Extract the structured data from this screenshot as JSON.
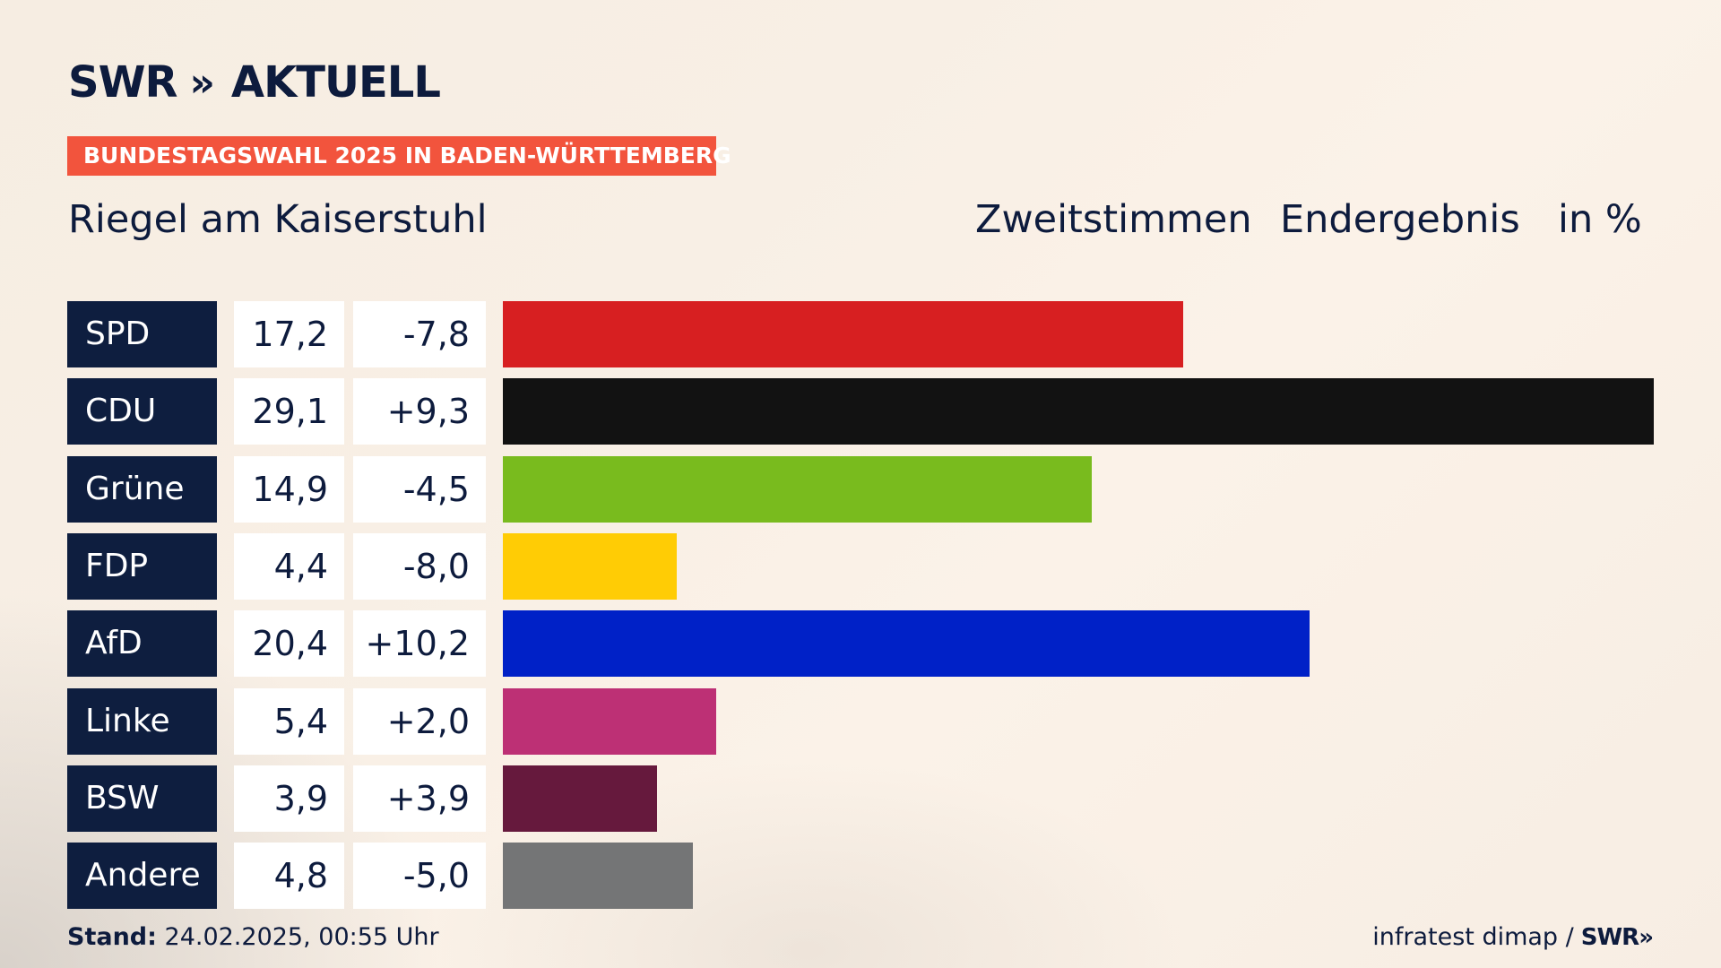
{
  "header": {
    "logo_left": "SWR",
    "logo_chevrons": "»",
    "logo_right": "AKTUELL",
    "banner": "BUNDESTAGSWAHL 2025 IN BADEN-WÜRTTEMBERG",
    "place": "Riegel am Kaiserstuhl",
    "col_zweitstimmen": "Zweitstimmen",
    "col_endergebnis": "Endergebnis",
    "col_unit": "in %"
  },
  "footer": {
    "stand_label": "Stand:",
    "stand_value": "24.02.2025, 00:55 Uhr",
    "source": "infratest dimap /",
    "source_logo": "SWR",
    "source_chevrons": "»"
  },
  "chart_data": {
    "type": "bar",
    "orientation": "horizontal",
    "categories": [
      "SPD",
      "CDU",
      "Grüne",
      "FDP",
      "AfD",
      "Linke",
      "BSW",
      "Andere"
    ],
    "values": [
      17.2,
      29.1,
      14.9,
      4.4,
      20.4,
      5.4,
      3.9,
      4.8
    ],
    "value_labels": [
      "17,2",
      "29,1",
      "14,9",
      "4,4",
      "20,4",
      "5,4",
      "3,9",
      "4,8"
    ],
    "diff_labels": [
      "-7,8",
      "+9,3",
      "-4,5",
      "-8,0",
      "+10,2",
      "+2,0",
      "+3,9",
      "-5,0"
    ],
    "colors": [
      "#d71f21",
      "#121212",
      "#79bb1e",
      "#ffcc05",
      "#0021c7",
      "#bd3075",
      "#66193d",
      "#747576"
    ],
    "title": "",
    "xlabel": "",
    "ylabel": "",
    "grid": false,
    "legend": "none"
  }
}
